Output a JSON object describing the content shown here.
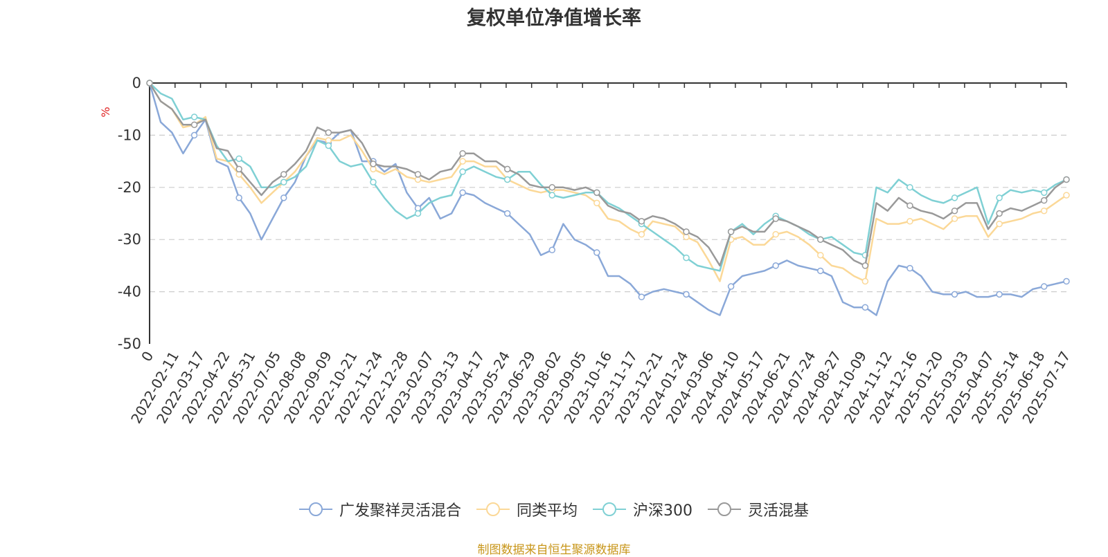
{
  "chart_data": {
    "type": "line",
    "title": "复权单位净值增长率",
    "ylabel": "%",
    "ylim": [
      -50,
      0
    ],
    "yticks": [
      0,
      -10,
      -20,
      -30,
      -40,
      -50
    ],
    "x_tick_labels": [
      "0",
      "2022-02-11",
      "2022-03-17",
      "2022-04-22",
      "2022-05-31",
      "2022-07-05",
      "2022-08-08",
      "2022-09-09",
      "2022-10-21",
      "2022-11-24",
      "2022-12-28",
      "2023-02-07",
      "2023-03-13",
      "2023-04-17",
      "2023-05-24",
      "2023-06-29",
      "2023-08-02",
      "2023-09-05",
      "2023-10-16",
      "2023-11-17",
      "2023-12-21",
      "2024-01-24",
      "2024-03-06",
      "2024-04-10",
      "2024-05-17",
      "2024-06-21",
      "2024-07-24",
      "2024-08-27",
      "2024-10-09",
      "2024-11-12",
      "2024-12-16",
      "2025-01-20",
      "2025-03-03",
      "2025-04-07",
      "2025-05-14",
      "2025-06-18",
      "2025-07-17"
    ],
    "grid": "horizontal-dashed",
    "legend_position": "bottom-center",
    "series": [
      {
        "name": "广发聚祥灵活混合",
        "color": "#8aa8d8",
        "values": [
          0,
          -7.5,
          -9.5,
          -13.5,
          -10,
          -7,
          -15,
          -16,
          -22,
          -25,
          -30,
          -26,
          -22,
          -19,
          -14,
          -11,
          -11.5,
          -9.5,
          -9,
          -15,
          -15,
          -17,
          -15.5,
          -21,
          -24,
          -22,
          -26,
          -25,
          -21,
          -21.5,
          -23,
          -24,
          -25,
          -27,
          -29,
          -33,
          -32,
          -27,
          -30,
          -31,
          -32.5,
          -37,
          -37,
          -38.5,
          -41,
          -40,
          -39.5,
          -40,
          -40.5,
          -42,
          -43.5,
          -44.5,
          -39,
          -37,
          -36.5,
          -36,
          -35,
          -34,
          -35,
          -35.5,
          -36,
          -37,
          -42,
          -43,
          -43,
          -44.5,
          -38,
          -35,
          -35.5,
          -37,
          -40,
          -40.5,
          -40.5,
          -40,
          -41,
          -41,
          -40.5,
          -40.5,
          -41,
          -39.5,
          -39,
          -38.5,
          -38
        ]
      },
      {
        "name": "同类平均",
        "color": "#fbd897",
        "values": [
          0,
          -3.5,
          -5,
          -8.5,
          -8,
          -6.5,
          -14.5,
          -15,
          -17.5,
          -20,
          -23,
          -21,
          -19,
          -17,
          -14,
          -10.5,
          -11,
          -11,
          -10,
          -13,
          -16.5,
          -17.5,
          -16.5,
          -18,
          -18.5,
          -19,
          -18.5,
          -18,
          -15,
          -15,
          -16,
          -16,
          -18.5,
          -19.5,
          -20.5,
          -21,
          -20.5,
          -20.5,
          -21,
          -21.5,
          -23,
          -26,
          -26.5,
          -28,
          -29,
          -26.5,
          -27,
          -27.5,
          -29.5,
          -30.5,
          -34,
          -38,
          -30,
          -29.5,
          -31,
          -31,
          -29,
          -28.5,
          -29.5,
          -31,
          -33,
          -35,
          -35.5,
          -37,
          -38,
          -26,
          -27,
          -27,
          -26.5,
          -26,
          -27,
          -28,
          -26,
          -25.5,
          -25.5,
          -29.5,
          -27,
          -26.5,
          -26,
          -25,
          -24.5,
          -23,
          -21.5
        ]
      },
      {
        "name": "沪深300",
        "color": "#7fd0d4",
        "values": [
          0,
          -2,
          -3,
          -7,
          -6.5,
          -7,
          -12,
          -15,
          -14.5,
          -16,
          -20,
          -20,
          -19,
          -18,
          -16,
          -11,
          -12,
          -15,
          -16,
          -15.5,
          -19,
          -22,
          -24.5,
          -26,
          -25,
          -23,
          -22,
          -21.5,
          -17,
          -16,
          -17,
          -18,
          -18.5,
          -17,
          -17,
          -19.5,
          -21.5,
          -22,
          -21.5,
          -21,
          -21,
          -23,
          -24,
          -25.5,
          -27,
          -28.5,
          -30,
          -31.5,
          -33.5,
          -35,
          -35.5,
          -36,
          -28.5,
          -27,
          -29,
          -27,
          -25.5,
          -26.5,
          -27.5,
          -29,
          -30,
          -29.5,
          -31,
          -32.5,
          -33,
          -20,
          -21,
          -18.5,
          -20,
          -21.5,
          -22.5,
          -23,
          -22,
          -21,
          -20,
          -27,
          -22,
          -20.5,
          -21,
          -20.5,
          -21,
          -19.5,
          -18.5
        ]
      },
      {
        "name": "灵活混基",
        "color": "#999999",
        "values": [
          0,
          -3.5,
          -5,
          -8,
          -8,
          -7,
          -12.5,
          -13,
          -16.5,
          -19,
          -21.5,
          -19,
          -17.5,
          -15.5,
          -13,
          -8.5,
          -9.5,
          -9.5,
          -9,
          -11.5,
          -15.5,
          -16,
          -16,
          -16.5,
          -17.5,
          -18.5,
          -17,
          -16.5,
          -13.5,
          -13.5,
          -15,
          -15,
          -16.5,
          -17.5,
          -19.5,
          -20,
          -20,
          -20,
          -20.5,
          -20,
          -21,
          -23.5,
          -24.5,
          -25,
          -26.5,
          -25.5,
          -26,
          -27,
          -28.5,
          -29.5,
          -31.5,
          -35,
          -28.5,
          -27.5,
          -28.5,
          -28.5,
          -26,
          -26.5,
          -27.5,
          -28.5,
          -30,
          -31,
          -32,
          -34,
          -35,
          -23,
          -24.5,
          -22,
          -23.5,
          -24.5,
          -25,
          -26,
          -24.5,
          -23,
          -23,
          -28,
          -25,
          -24,
          -24.5,
          -23.5,
          -22.5,
          -20,
          -18.5
        ]
      }
    ]
  },
  "footer": {
    "source": "制图数据来自恒生聚源数据库",
    "source_color": "#c8961a"
  }
}
